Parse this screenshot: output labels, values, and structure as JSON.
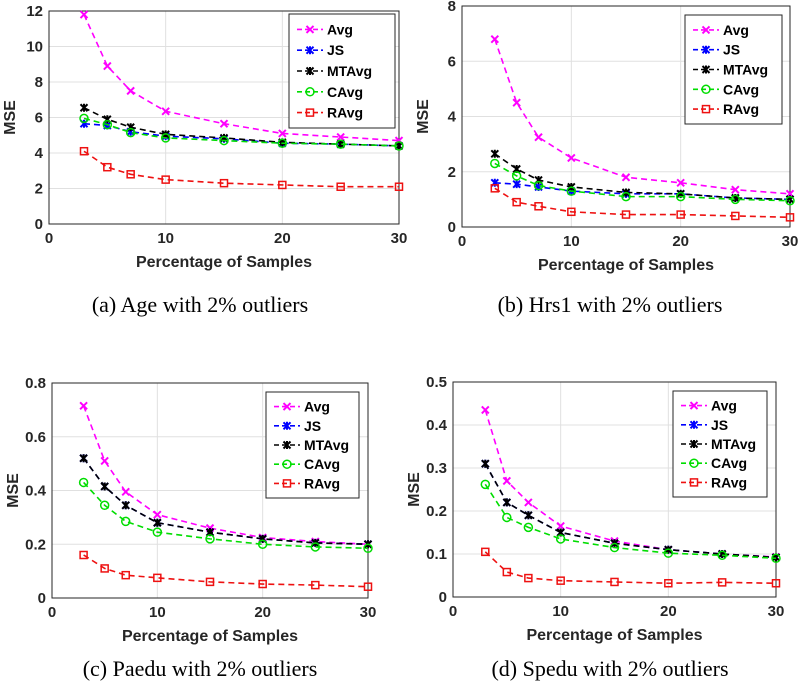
{
  "chart_data": [
    {
      "type": "line",
      "caption": "(a)  Age with 2% outliers",
      "xlabel": "Percentage of Samples",
      "ylabel": "MSE",
      "xlim": [
        0,
        30
      ],
      "ylim": [
        0,
        12
      ],
      "xticks": [
        0,
        10,
        20,
        30
      ],
      "yticks": [
        0,
        2,
        4,
        6,
        8,
        10,
        12
      ],
      "grid": true,
      "legend": "top-right",
      "x": [
        3,
        5,
        7,
        10,
        15,
        20,
        25,
        30
      ],
      "series": [
        {
          "name": "Avg",
          "color": "#ff00ff",
          "marker": "x",
          "values": [
            11.8,
            8.9,
            7.5,
            6.35,
            5.65,
            5.1,
            4.9,
            4.7
          ]
        },
        {
          "name": "JS",
          "color": "#0000ff",
          "marker": "star",
          "values": [
            5.65,
            5.55,
            5.2,
            4.95,
            4.8,
            4.55,
            4.5,
            4.4
          ]
        },
        {
          "name": "MTAvg",
          "color": "#000000",
          "marker": "star",
          "values": [
            6.55,
            5.9,
            5.45,
            5.05,
            4.85,
            4.6,
            4.5,
            4.4
          ]
        },
        {
          "name": "CAvg",
          "color": "#00dd00",
          "marker": "circle",
          "values": [
            5.95,
            5.6,
            5.15,
            4.85,
            4.7,
            4.55,
            4.5,
            4.4
          ]
        },
        {
          "name": "RAvg",
          "color": "#ee1111",
          "marker": "square",
          "values": [
            4.1,
            3.2,
            2.8,
            2.5,
            2.3,
            2.2,
            2.1,
            2.1
          ]
        }
      ]
    },
    {
      "type": "line",
      "caption": "(b)  Hrs1 with 2% outliers",
      "xlabel": "Percentage of Samples",
      "ylabel": "MSE",
      "xlim": [
        0,
        30
      ],
      "ylim": [
        0,
        8
      ],
      "xticks": [
        0,
        10,
        20,
        30
      ],
      "yticks": [
        0,
        2,
        4,
        6,
        8
      ],
      "grid": true,
      "legend": "top-right",
      "x": [
        3,
        5,
        7,
        10,
        15,
        20,
        25,
        30
      ],
      "series": [
        {
          "name": "Avg",
          "color": "#ff00ff",
          "marker": "x",
          "values": [
            6.8,
            4.5,
            3.25,
            2.5,
            1.8,
            1.6,
            1.35,
            1.2
          ]
        },
        {
          "name": "JS",
          "color": "#0000ff",
          "marker": "star",
          "values": [
            1.6,
            1.55,
            1.45,
            1.3,
            1.2,
            1.2,
            1.05,
            1.0
          ]
        },
        {
          "name": "MTAvg",
          "color": "#000000",
          "marker": "star",
          "values": [
            2.65,
            2.1,
            1.7,
            1.45,
            1.25,
            1.2,
            1.05,
            1.0
          ]
        },
        {
          "name": "CAvg",
          "color": "#00dd00",
          "marker": "circle",
          "values": [
            2.3,
            1.85,
            1.5,
            1.3,
            1.1,
            1.1,
            1.0,
            0.95
          ]
        },
        {
          "name": "RAvg",
          "color": "#ee1111",
          "marker": "square",
          "values": [
            1.4,
            0.9,
            0.75,
            0.55,
            0.45,
            0.45,
            0.4,
            0.35
          ]
        }
      ]
    },
    {
      "type": "line",
      "caption": "(c)  Paedu with 2% outliers",
      "xlabel": "Percentage of Samples",
      "ylabel": "MSE",
      "xlim": [
        0,
        30
      ],
      "ylim": [
        0,
        0.8
      ],
      "xticks": [
        0,
        10,
        20,
        30
      ],
      "yticks": [
        0,
        0.2,
        0.4,
        0.6,
        0.8
      ],
      "grid": true,
      "legend": "top-right",
      "x": [
        3,
        5,
        7,
        10,
        15,
        20,
        25,
        30
      ],
      "series": [
        {
          "name": "Avg",
          "color": "#ff00ff",
          "marker": "x",
          "values": [
            0.715,
            0.51,
            0.395,
            0.31,
            0.26,
            0.225,
            0.21,
            0.2
          ]
        },
        {
          "name": "JS",
          "color": "#0000ff",
          "marker": "star",
          "values": [
            0.52,
            0.415,
            0.345,
            0.28,
            0.245,
            0.22,
            0.205,
            0.2
          ]
        },
        {
          "name": "MTAvg",
          "color": "#000000",
          "marker": "star",
          "values": [
            0.52,
            0.415,
            0.345,
            0.28,
            0.245,
            0.22,
            0.205,
            0.2
          ]
        },
        {
          "name": "CAvg",
          "color": "#00dd00",
          "marker": "circle",
          "values": [
            0.43,
            0.345,
            0.285,
            0.245,
            0.22,
            0.2,
            0.19,
            0.185
          ]
        },
        {
          "name": "RAvg",
          "color": "#ee1111",
          "marker": "square",
          "values": [
            0.16,
            0.11,
            0.085,
            0.075,
            0.06,
            0.052,
            0.048,
            0.042
          ]
        }
      ]
    },
    {
      "type": "line",
      "caption": "(d)  Spedu with 2% outliers",
      "xlabel": "Percentage of Samples",
      "ylabel": "MSE",
      "xlim": [
        0,
        30
      ],
      "ylim": [
        0,
        0.5
      ],
      "xticks": [
        0,
        10,
        20,
        30
      ],
      "yticks": [
        0,
        0.1,
        0.2,
        0.3,
        0.4,
        0.5
      ],
      "grid": true,
      "legend": "top-right",
      "x": [
        3,
        5,
        7,
        10,
        15,
        20,
        25,
        30
      ],
      "series": [
        {
          "name": "Avg",
          "color": "#ff00ff",
          "marker": "x",
          "values": [
            0.435,
            0.27,
            0.22,
            0.165,
            0.13,
            0.11,
            0.1,
            0.093
          ]
        },
        {
          "name": "JS",
          "color": "#0000ff",
          "marker": "star",
          "values": [
            0.31,
            0.22,
            0.19,
            0.15,
            0.125,
            0.11,
            0.1,
            0.092
          ]
        },
        {
          "name": "MTAvg",
          "color": "#000000",
          "marker": "star",
          "values": [
            0.31,
            0.22,
            0.19,
            0.15,
            0.125,
            0.11,
            0.1,
            0.092
          ]
        },
        {
          "name": "CAvg",
          "color": "#00dd00",
          "marker": "circle",
          "values": [
            0.262,
            0.185,
            0.162,
            0.135,
            0.115,
            0.102,
            0.097,
            0.09
          ]
        },
        {
          "name": "RAvg",
          "color": "#ee1111",
          "marker": "square",
          "values": [
            0.105,
            0.058,
            0.044,
            0.038,
            0.035,
            0.032,
            0.034,
            0.032
          ]
        }
      ]
    }
  ]
}
